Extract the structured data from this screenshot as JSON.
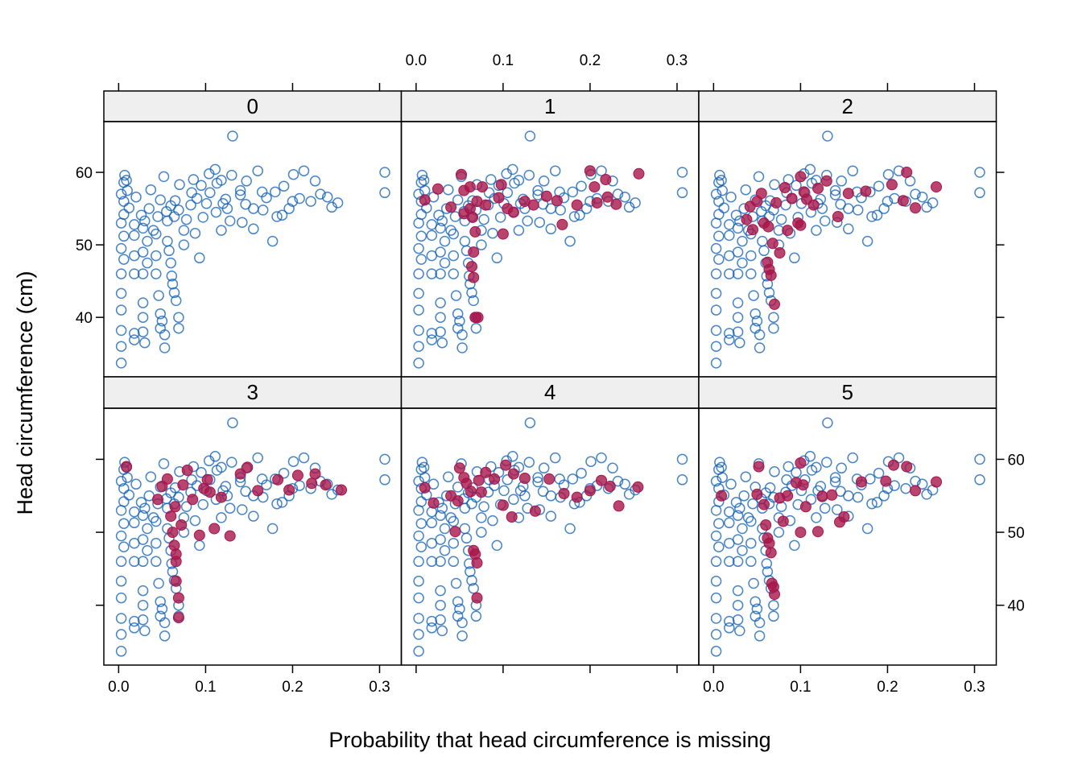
{
  "chart_data": {
    "type": "scatter",
    "layout": "trellis 3 columns x 2 rows",
    "xlabel": "Probability that head circumference is missing",
    "ylabel": "Head circumference (cm)",
    "xlim": [
      -0.017,
      0.325
    ],
    "ylim": [
      31.8,
      67.0
    ],
    "x_ticks": [
      "0.0",
      "0.1",
      "0.2",
      "0.3"
    ],
    "y_ticks": [
      "40",
      "50",
      "60"
    ],
    "x_tick_values": [
      0.0,
      0.1,
      0.2,
      0.3
    ],
    "y_tick_values": [
      40,
      50,
      60
    ],
    "grid": false,
    "legend": "none",
    "colors": {
      "observed": "#0b5cb5",
      "imputed": "#a8154a",
      "strip": "#efefef"
    },
    "marker_styles": {
      "observed": "open circle",
      "imputed": "filled circle"
    },
    "panels": [
      {
        "label": "0"
      },
      {
        "label": "1"
      },
      {
        "label": "2"
      },
      {
        "label": "3"
      },
      {
        "label": "4"
      },
      {
        "label": "5"
      }
    ],
    "observed": [
      [
        0.131,
        65.0
      ],
      [
        0.306,
        60.0
      ],
      [
        0.306,
        57.2
      ],
      [
        0.252,
        55.8
      ],
      [
        0.245,
        55.2
      ],
      [
        0.232,
        57.0
      ],
      [
        0.221,
        56.0
      ],
      [
        0.213,
        60.2
      ],
      [
        0.201,
        59.7
      ],
      [
        0.196,
        55.0
      ],
      [
        0.188,
        54.1
      ],
      [
        0.177,
        50.5
      ],
      [
        0.17,
        56.5
      ],
      [
        0.16,
        60.2
      ],
      [
        0.155,
        55.0
      ],
      [
        0.155,
        52.2
      ],
      [
        0.147,
        58.8
      ],
      [
        0.14,
        56.9
      ],
      [
        0.13,
        59.6
      ],
      [
        0.123,
        56.3
      ],
      [
        0.12,
        55.7
      ],
      [
        0.111,
        60.4
      ],
      [
        0.105,
        57.2
      ],
      [
        0.101,
        55.7
      ],
      [
        0.097,
        53.8
      ],
      [
        0.095,
        58.2
      ],
      [
        0.09,
        56.4
      ],
      [
        0.083,
        55.5
      ],
      [
        0.078,
        53.5
      ],
      [
        0.075,
        52.0
      ],
      [
        0.07,
        58.3
      ],
      [
        0.065,
        56.1
      ],
      [
        0.06,
        55.4
      ],
      [
        0.055,
        54.6
      ],
      [
        0.052,
        59.4
      ],
      [
        0.048,
        56.2
      ],
      [
        0.045,
        53.9
      ],
      [
        0.04,
        52.0
      ],
      [
        0.037,
        57.6
      ],
      [
        0.035,
        55.0
      ],
      [
        0.03,
        53.3
      ],
      [
        0.026,
        54.1
      ],
      [
        0.02,
        56.6
      ],
      [
        0.018,
        52.8
      ],
      [
        0.003,
        57.0
      ],
      [
        0.003,
        53.0
      ],
      [
        0.003,
        49.5
      ],
      [
        0.003,
        46.0
      ],
      [
        0.003,
        43.3
      ],
      [
        0.003,
        41.0
      ],
      [
        0.003,
        38.2
      ],
      [
        0.003,
        36.0
      ],
      [
        0.003,
        33.7
      ],
      [
        0.006,
        58.6
      ],
      [
        0.006,
        56.0
      ],
      [
        0.006,
        54.2
      ],
      [
        0.006,
        51.2
      ],
      [
        0.006,
        48.0
      ],
      [
        0.007,
        59.6
      ],
      [
        0.009,
        58.9
      ],
      [
        0.01,
        57.5
      ],
      [
        0.012,
        55.1
      ],
      [
        0.018,
        51.3
      ],
      [
        0.018,
        48.5
      ],
      [
        0.018,
        46.0
      ],
      [
        0.018,
        37.8
      ],
      [
        0.018,
        36.9
      ],
      [
        0.028,
        52.3
      ],
      [
        0.028,
        49.0
      ],
      [
        0.028,
        46.0
      ],
      [
        0.028,
        42.0
      ],
      [
        0.028,
        40.0
      ],
      [
        0.028,
        38.0
      ],
      [
        0.03,
        36.5
      ],
      [
        0.033,
        50.5
      ],
      [
        0.033,
        47.5
      ],
      [
        0.043,
        51.5
      ],
      [
        0.043,
        48.5
      ],
      [
        0.043,
        46.0
      ],
      [
        0.046,
        43.0
      ],
      [
        0.048,
        40.5
      ],
      [
        0.048,
        38.5
      ],
      [
        0.05,
        39.5
      ],
      [
        0.053,
        37.6
      ],
      [
        0.053,
        35.8
      ],
      [
        0.056,
        53.3
      ],
      [
        0.056,
        50.5
      ],
      [
        0.058,
        49.2
      ],
      [
        0.06,
        47.5
      ],
      [
        0.061,
        45.7
      ],
      [
        0.062,
        44.6
      ],
      [
        0.064,
        43.4
      ],
      [
        0.066,
        42.3
      ],
      [
        0.069,
        40.0
      ],
      [
        0.069,
        38.5
      ],
      [
        0.069,
        54.8
      ],
      [
        0.075,
        50.0
      ],
      [
        0.088,
        51.6
      ],
      [
        0.093,
        48.2
      ],
      [
        0.112,
        54.5
      ],
      [
        0.118,
        52.0
      ],
      [
        0.128,
        53.3
      ],
      [
        0.142,
        53.1
      ],
      [
        0.146,
        55.6
      ],
      [
        0.166,
        54.8
      ],
      [
        0.182,
        53.9
      ],
      [
        0.19,
        58.1
      ],
      [
        0.208,
        56.4
      ],
      [
        0.226,
        58.8
      ],
      [
        0.24,
        56.6
      ],
      [
        0.165,
        57.3
      ],
      [
        0.113,
        58.5
      ],
      [
        0.084,
        57.2
      ],
      [
        0.064,
        53.9
      ],
      [
        0.086,
        59.0
      ],
      [
        0.104,
        59.8
      ],
      [
        0.2,
        56.0
      ],
      [
        0.18,
        57.3
      ],
      [
        0.14,
        57.5
      ],
      [
        0.125,
        55.0
      ],
      [
        0.118,
        58.9
      ]
    ],
    "imputed": [
      [],
      [
        [
          0.052,
          59.7
        ],
        [
          0.055,
          57.5
        ],
        [
          0.062,
          58.0
        ],
        [
          0.055,
          54.3
        ],
        [
          0.062,
          55.0
        ],
        [
          0.065,
          53.8
        ],
        [
          0.07,
          56.0
        ],
        [
          0.076,
          58.0
        ],
        [
          0.08,
          55.5
        ],
        [
          0.068,
          51.8
        ],
        [
          0.066,
          49.0
        ],
        [
          0.064,
          47.0
        ],
        [
          0.066,
          45.5
        ],
        [
          0.068,
          40.0
        ],
        [
          0.071,
          40.0
        ],
        [
          0.098,
          58.3
        ],
        [
          0.095,
          56.5
        ],
        [
          0.1,
          51.5
        ],
        [
          0.105,
          55.0
        ],
        [
          0.112,
          54.5
        ],
        [
          0.125,
          56.0
        ],
        [
          0.135,
          55.5
        ],
        [
          0.15,
          56.7
        ],
        [
          0.162,
          56.1
        ],
        [
          0.168,
          52.8
        ],
        [
          0.185,
          55.5
        ],
        [
          0.2,
          60.2
        ],
        [
          0.205,
          58.0
        ],
        [
          0.208,
          55.8
        ],
        [
          0.218,
          59.0
        ],
        [
          0.22,
          56.6
        ],
        [
          0.23,
          55.6
        ],
        [
          0.256,
          59.8
        ],
        [
          0.01,
          56.2
        ],
        [
          0.025,
          57.7
        ],
        [
          0.04,
          55.2
        ]
      ],
      [
        [
          0.038,
          53.5
        ],
        [
          0.042,
          55.3
        ],
        [
          0.05,
          56.0
        ],
        [
          0.055,
          57.1
        ],
        [
          0.058,
          53.0
        ],
        [
          0.063,
          52.5
        ],
        [
          0.068,
          50.2
        ],
        [
          0.062,
          47.6
        ],
        [
          0.064,
          46.6
        ],
        [
          0.066,
          45.8
        ],
        [
          0.07,
          41.8
        ],
        [
          0.072,
          55.8
        ],
        [
          0.082,
          57.9
        ],
        [
          0.09,
          56.4
        ],
        [
          0.097,
          53.0
        ],
        [
          0.1,
          59.4
        ],
        [
          0.104,
          57.3
        ],
        [
          0.107,
          56.3
        ],
        [
          0.115,
          55.5
        ],
        [
          0.12,
          57.8
        ],
        [
          0.13,
          58.8
        ],
        [
          0.143,
          53.9
        ],
        [
          0.155,
          57.1
        ],
        [
          0.175,
          57.4
        ],
        [
          0.205,
          58.3
        ],
        [
          0.218,
          56.1
        ],
        [
          0.222,
          60.0
        ],
        [
          0.232,
          55.1
        ],
        [
          0.256,
          58.0
        ],
        [
          0.045,
          52.1
        ],
        [
          0.076,
          48.9
        ],
        [
          0.085,
          52.0
        ],
        [
          0.1,
          52.7
        ]
      ],
      [
        [
          0.009,
          59.0
        ],
        [
          0.045,
          54.5
        ],
        [
          0.05,
          56.3
        ],
        [
          0.056,
          57.3
        ],
        [
          0.06,
          52.2
        ],
        [
          0.062,
          50.0
        ],
        [
          0.064,
          48.2
        ],
        [
          0.066,
          47.0
        ],
        [
          0.066,
          46.0
        ],
        [
          0.066,
          43.3
        ],
        [
          0.069,
          41.0
        ],
        [
          0.069,
          38.3
        ],
        [
          0.074,
          56.5
        ],
        [
          0.079,
          58.5
        ],
        [
          0.085,
          54.5
        ],
        [
          0.093,
          49.6
        ],
        [
          0.098,
          56.0
        ],
        [
          0.102,
          57.2
        ],
        [
          0.105,
          55.5
        ],
        [
          0.11,
          50.5
        ],
        [
          0.118,
          54.8
        ],
        [
          0.128,
          49.5
        ],
        [
          0.14,
          58.0
        ],
        [
          0.148,
          58.9
        ],
        [
          0.16,
          55.7
        ],
        [
          0.183,
          57.2
        ],
        [
          0.196,
          55.8
        ],
        [
          0.206,
          57.8
        ],
        [
          0.222,
          56.7
        ],
        [
          0.226,
          58.0
        ],
        [
          0.238,
          56.5
        ],
        [
          0.256,
          55.8
        ],
        [
          0.065,
          53.5
        ],
        [
          0.072,
          51.0
        ]
      ],
      [
        [
          0.01,
          56.1
        ],
        [
          0.04,
          55.0
        ],
        [
          0.048,
          54.3
        ],
        [
          0.05,
          58.8
        ],
        [
          0.055,
          57.5
        ],
        [
          0.058,
          56.7
        ],
        [
          0.063,
          55.6
        ],
        [
          0.066,
          47.5
        ],
        [
          0.068,
          47.0
        ],
        [
          0.07,
          45.8
        ],
        [
          0.07,
          41.0
        ],
        [
          0.072,
          57.1
        ],
        [
          0.08,
          58.2
        ],
        [
          0.09,
          57.3
        ],
        [
          0.1,
          53.7
        ],
        [
          0.103,
          59.2
        ],
        [
          0.11,
          52.1
        ],
        [
          0.112,
          58.0
        ],
        [
          0.125,
          57.4
        ],
        [
          0.137,
          52.9
        ],
        [
          0.153,
          57.3
        ],
        [
          0.17,
          55.3
        ],
        [
          0.185,
          54.8
        ],
        [
          0.2,
          55.7
        ],
        [
          0.213,
          57.1
        ],
        [
          0.223,
          56.3
        ],
        [
          0.233,
          53.6
        ],
        [
          0.255,
          56.2
        ],
        [
          0.02,
          54.0
        ],
        [
          0.045,
          50.1
        ],
        [
          0.075,
          55.5
        ]
      ],
      [
        [
          0.009,
          55.0
        ],
        [
          0.05,
          55.2
        ],
        [
          0.052,
          59.0
        ],
        [
          0.058,
          53.8
        ],
        [
          0.062,
          49.2
        ],
        [
          0.064,
          48.5
        ],
        [
          0.066,
          47.2
        ],
        [
          0.067,
          43.0
        ],
        [
          0.069,
          42.5
        ],
        [
          0.07,
          41.5
        ],
        [
          0.076,
          54.7
        ],
        [
          0.085,
          55.0
        ],
        [
          0.095,
          56.8
        ],
        [
          0.1,
          59.5
        ],
        [
          0.103,
          56.5
        ],
        [
          0.106,
          53.5
        ],
        [
          0.12,
          50.1
        ],
        [
          0.125,
          54.9
        ],
        [
          0.136,
          55.1
        ],
        [
          0.145,
          51.4
        ],
        [
          0.15,
          52.1
        ],
        [
          0.17,
          56.9
        ],
        [
          0.198,
          57.0
        ],
        [
          0.207,
          59.2
        ],
        [
          0.222,
          59.0
        ],
        [
          0.232,
          55.7
        ],
        [
          0.256,
          56.9
        ],
        [
          0.1,
          50.0
        ],
        [
          0.08,
          51.5
        ],
        [
          0.06,
          51.0
        ]
      ]
    ]
  }
}
